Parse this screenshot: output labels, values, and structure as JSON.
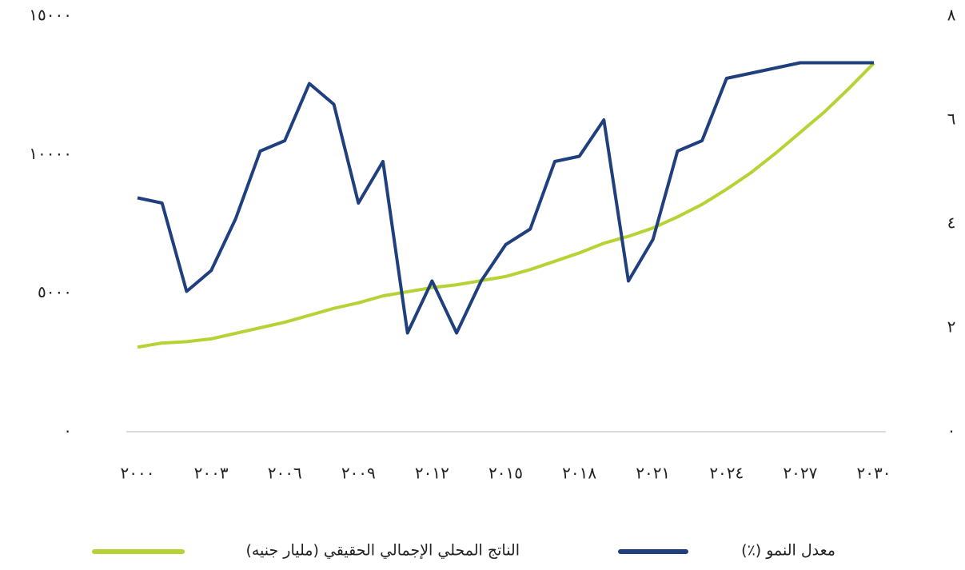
{
  "chart_data": {
    "type": "line",
    "x": [
      2000,
      2001,
      2002,
      2003,
      2004,
      2005,
      2006,
      2007,
      2008,
      2009,
      2010,
      2011,
      2012,
      2013,
      2014,
      2015,
      2016,
      2017,
      2018,
      2019,
      2020,
      2021,
      2022,
      2023,
      2024,
      2025,
      2026,
      2027,
      2028,
      2029,
      2030
    ],
    "xlim": [
      2000,
      2030
    ],
    "xticks": [
      {
        "value": 2000,
        "label": "٢٠٠٠"
      },
      {
        "value": 2003,
        "label": "٢٠٠٣"
      },
      {
        "value": 2006,
        "label": "٢٠٠٦"
      },
      {
        "value": 2009,
        "label": "٢٠٠٩"
      },
      {
        "value": 2012,
        "label": "٢٠١٢"
      },
      {
        "value": 2015,
        "label": "٢٠١٥"
      },
      {
        "value": 2018,
        "label": "٢٠١٨"
      },
      {
        "value": 2021,
        "label": "٢٠٢١"
      },
      {
        "value": 2024,
        "label": "٢٠٢٤"
      },
      {
        "value": 2027,
        "label": "٢٠٢٧"
      },
      {
        "value": 2030,
        "label": "٢٠٣٠"
      }
    ],
    "ylim": [
      0,
      15000
    ],
    "yticks": [
      {
        "value": 0,
        "label": "٠"
      },
      {
        "value": 5000,
        "label": "٥٠٠٠"
      },
      {
        "value": 10000,
        "label": "١٠٠٠٠"
      },
      {
        "value": 15000,
        "label": "١٥٠٠٠"
      }
    ],
    "y2lim": [
      0,
      8
    ],
    "y2ticks": [
      {
        "value": 0,
        "label": "٠"
      },
      {
        "value": 2,
        "label": "٢"
      },
      {
        "value": 4,
        "label": "٤"
      },
      {
        "value": 6,
        "label": "٦"
      },
      {
        "value": 8,
        "label": "٨"
      }
    ],
    "series": [
      {
        "name": "الناتج المحلي الإجمالي الحقيقي (مليار جنيه)",
        "color": "#b5d334",
        "values": [
          3050,
          3200,
          3250,
          3350,
          3550,
          3750,
          3950,
          4200,
          4450,
          4650,
          4900,
          5050,
          5200,
          5300,
          5450,
          5600,
          5850,
          6150,
          6450,
          6800,
          7050,
          7350,
          7750,
          8200,
          8750,
          9350,
          10050,
          10800,
          11550,
          12400,
          13300
        ]
      },
      {
        "name": "معدل النمو (٪)",
        "color": "#1f3f7f",
        "axis": "y2",
        "values": [
          4.5,
          4.4,
          2.7,
          3.1,
          4.1,
          5.4,
          5.6,
          6.7,
          6.3,
          4.4,
          5.2,
          1.9,
          2.9,
          1.9,
          2.9,
          3.6,
          3.9,
          5.2,
          5.3,
          6.0,
          2.9,
          3.7,
          5.4,
          5.6,
          6.8,
          6.9,
          7.0,
          7.1,
          7.1,
          7.1,
          7.1
        ]
      }
    ]
  }
}
